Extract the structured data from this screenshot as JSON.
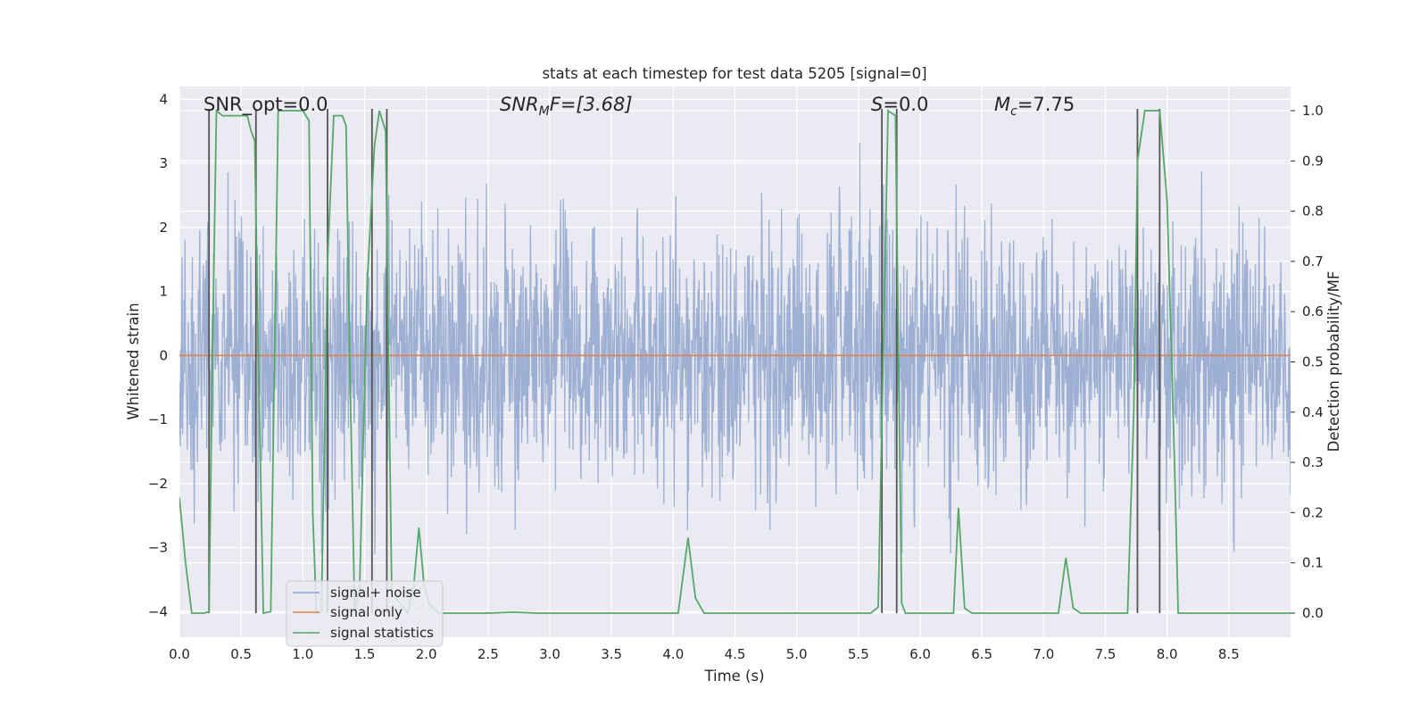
{
  "chart_data": {
    "type": "line",
    "title": "stats at each timestep for test data 5205 [signal=0]",
    "xlabel": "Time (s)",
    "ylabel": "Whitened strain",
    "ylabel_right": "Detection probability/MF",
    "xlim": [
      0,
      9.0
    ],
    "ylim": [
      -4.4,
      4.2
    ],
    "ylim_right": [
      -0.048,
      1.048
    ],
    "xticks": [
      "0.0",
      "0.5",
      "1.0",
      "1.5",
      "2.0",
      "2.5",
      "3.0",
      "3.5",
      "4.0",
      "4.5",
      "5.0",
      "5.5",
      "6.0",
      "6.5",
      "7.0",
      "7.5",
      "8.0",
      "8.5"
    ],
    "yticks": [
      "−4",
      "−3",
      "−2",
      "−1",
      "0",
      "1",
      "2",
      "3",
      "4"
    ],
    "yticks_right": [
      "0.0",
      "0.1",
      "0.2",
      "0.3",
      "0.4",
      "0.5",
      "0.6",
      "0.7",
      "0.8",
      "0.9",
      "1.0"
    ],
    "grid": true,
    "legend_position": "lower-left",
    "annotations": {
      "snr_opt": "SNR_opt=0.0",
      "snr_mf_main": "SNR",
      "snr_mf_sub": "M",
      "snr_mf_rest": "F=[3.68]",
      "s_main": "S",
      "s_rest": "=0.0",
      "mc_main": "M",
      "mc_sub": "c",
      "mc_rest": "=7.75"
    },
    "colors": {
      "noise": "#8fa4cd",
      "signal_only": "#dd8452",
      "statistics": "#55a868",
      "vlines": "#555555",
      "background": "#eaeaf2"
    },
    "series": [
      {
        "name": "signal+ noise",
        "axis": "left",
        "description_stats": {
          "duration_s": 9.0,
          "approx_std": 1.0,
          "sample_count": 2400
        }
      },
      {
        "name": "signal only",
        "axis": "left",
        "x": [
          0,
          9.0
        ],
        "y": [
          0,
          0
        ]
      },
      {
        "name": "signal statistics",
        "axis": "right",
        "x": [
          0.0,
          0.05,
          0.1,
          0.2,
          0.24,
          0.27,
          0.3,
          0.35,
          0.55,
          0.58,
          0.61,
          0.64,
          0.68,
          0.74,
          0.77,
          0.8,
          1.0,
          1.05,
          1.08,
          1.11,
          1.15,
          1.2,
          1.25,
          1.32,
          1.35,
          1.38,
          1.42,
          1.46,
          1.52,
          1.58,
          1.62,
          1.67,
          1.72,
          1.85,
          1.9,
          1.94,
          1.98,
          2.02,
          2.1,
          2.5,
          2.7,
          2.9,
          4.04,
          4.12,
          4.18,
          4.25,
          5.6,
          5.66,
          5.7,
          5.74,
          5.8,
          5.85,
          5.88,
          6.27,
          6.31,
          6.36,
          6.42,
          7.12,
          7.18,
          7.24,
          7.3,
          7.68,
          7.73,
          7.76,
          7.82,
          7.88,
          7.94,
          8.0,
          8.06,
          8.09,
          9.0
        ],
        "y": [
          0.23,
          0.1,
          0.0,
          0.0,
          0.003,
          0.55,
          1.0,
          0.99,
          0.99,
          0.96,
          0.94,
          0.5,
          0.0,
          0.003,
          0.5,
          1.0,
          1.0,
          0.98,
          0.2,
          0.0,
          0.003,
          0.7,
          0.99,
          0.99,
          0.97,
          0.5,
          0.0,
          0.05,
          0.65,
          0.93,
          1.0,
          0.96,
          0.04,
          0.0,
          0.06,
          0.17,
          0.06,
          0.02,
          0.0,
          0.0,
          0.002,
          0.0,
          0.0,
          0.15,
          0.03,
          0.0,
          0.0,
          0.012,
          0.5,
          1.0,
          0.99,
          0.02,
          0.0,
          0.0,
          0.21,
          0.01,
          0.0,
          0.0,
          0.11,
          0.01,
          0.0,
          0.0,
          0.4,
          0.9,
          1.0,
          1.0,
          1.0,
          0.82,
          0.3,
          0.0,
          0.0
        ]
      }
    ],
    "vlines_x": [
      0.24,
      0.62,
      1.2,
      1.56,
      1.68,
      5.69,
      5.81,
      7.76,
      7.94
    ]
  }
}
